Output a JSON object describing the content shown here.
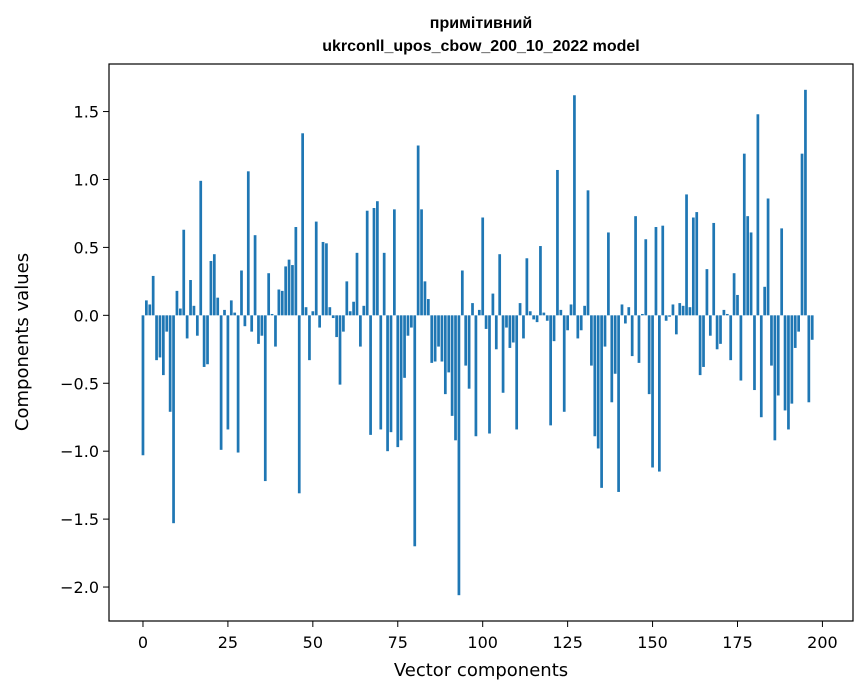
{
  "chart_data": {
    "type": "bar",
    "title_lines": [
      "примітивний",
      "ukrconll_upos_cbow_200_10_2022 model"
    ],
    "xlabel": "Vector components",
    "ylabel": "Components values",
    "xlim": [
      -10,
      209
    ],
    "ylim": [
      -2.25,
      1.85
    ],
    "xticks": [
      0,
      25,
      50,
      75,
      100,
      125,
      150,
      175,
      200
    ],
    "xtick_labels": [
      "0",
      "25",
      "50",
      "75",
      "100",
      "125",
      "150",
      "175",
      "200"
    ],
    "yticks": [
      -2.0,
      -1.5,
      -1.0,
      -0.5,
      0.0,
      0.5,
      1.0,
      1.5
    ],
    "ytick_labels": [
      "−2.0",
      "−1.5",
      "−1.0",
      "−0.5",
      "0.0",
      "0.5",
      "1.0",
      "1.5"
    ],
    "bar_color": "#1f77b4",
    "values": [
      -1.03,
      0.11,
      0.08,
      0.29,
      -0.33,
      -0.31,
      -0.44,
      -0.12,
      -0.71,
      -1.53,
      0.18,
      0.05,
      0.63,
      -0.17,
      0.26,
      0.07,
      -0.15,
      0.99,
      -0.38,
      -0.36,
      0.4,
      0.45,
      0.13,
      -0.99,
      0.04,
      -0.84,
      0.11,
      0.02,
      -1.01,
      0.33,
      -0.08,
      1.06,
      -0.12,
      0.59,
      -0.21,
      -0.15,
      -1.22,
      0.31,
      0.01,
      -0.23,
      0.19,
      0.18,
      0.36,
      0.41,
      0.37,
      0.65,
      -1.31,
      1.34,
      0.06,
      -0.33,
      0.03,
      0.69,
      -0.09,
      0.54,
      0.53,
      0.06,
      -0.02,
      -0.16,
      -0.51,
      -0.12,
      0.25,
      0.03,
      0.1,
      0.46,
      -0.23,
      0.07,
      0.77,
      -0.88,
      0.79,
      0.84,
      -0.84,
      0.46,
      -1.0,
      -0.86,
      0.78,
      -0.97,
      -0.92,
      -0.46,
      -0.15,
      -0.09,
      -1.7,
      1.25,
      0.78,
      0.25,
      0.12,
      -0.35,
      -0.34,
      -0.23,
      -0.34,
      -0.58,
      -0.42,
      -0.74,
      -0.92,
      -2.06,
      0.33,
      -0.37,
      -0.54,
      0.09,
      -0.89,
      0.04,
      0.72,
      -0.1,
      -0.87,
      0.16,
      -0.25,
      0.45,
      -0.57,
      -0.09,
      -0.24,
      -0.2,
      -0.84,
      0.09,
      -0.17,
      0.42,
      0.03,
      -0.03,
      -0.05,
      0.51,
      0.02,
      -0.04,
      -0.81,
      -0.19,
      1.07,
      0.04,
      -0.71,
      -0.11,
      0.08,
      1.62,
      -0.17,
      -0.11,
      0.07,
      0.92,
      -0.37,
      -0.89,
      -0.98,
      -1.27,
      -0.23,
      0.61,
      -0.64,
      -0.43,
      -1.3,
      0.08,
      -0.06,
      0.06,
      -0.3,
      0.73,
      -0.35,
      0.01,
      0.56,
      -0.58,
      -1.12,
      0.65,
      -1.15,
      0.66,
      -0.04,
      -0.01,
      0.08,
      -0.14,
      0.09,
      0.07,
      0.89,
      0.06,
      0.72,
      0.76,
      -0.44,
      -0.38,
      0.34,
      -0.15,
      0.68,
      -0.25,
      -0.21,
      0.04,
      0.01,
      -0.33,
      0.31,
      0.15,
      -0.48,
      1.19,
      0.73,
      0.61,
      -0.55,
      1.48,
      -0.75,
      0.21,
      0.86,
      -0.37,
      -0.92,
      -0.59,
      0.64,
      -0.7,
      -0.84,
      -0.65,
      -0.24,
      -0.12,
      1.19,
      1.66,
      -0.64,
      -0.18
    ]
  }
}
